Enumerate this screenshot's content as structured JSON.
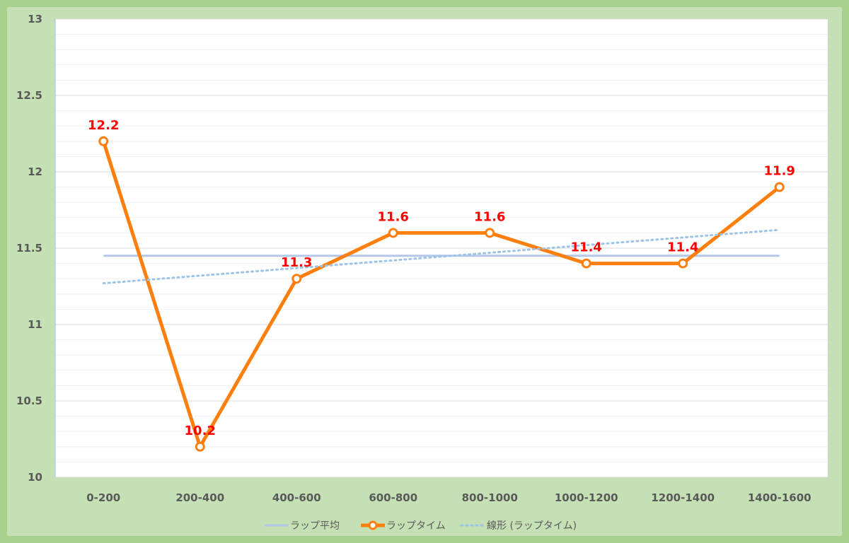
{
  "chart_data": {
    "type": "line",
    "categories": [
      "0-200",
      "200-400",
      "400-600",
      "600-800",
      "800-1000",
      "1000-1200",
      "1200-1400",
      "1400-1600"
    ],
    "series": [
      {
        "name": "ラップ平均",
        "values": [
          11.45,
          11.45,
          11.45,
          11.45,
          11.45,
          11.45,
          11.45,
          11.45
        ],
        "color": "#b4c7e7",
        "style": "solid"
      },
      {
        "name": "ラップタイム",
        "values": [
          12.2,
          10.2,
          11.3,
          11.6,
          11.6,
          11.4,
          11.4,
          11.9
        ],
        "color": "#ff7f0e",
        "style": "solid-markers",
        "data_labels": [
          "12.2",
          "10.2",
          "11.3",
          "11.6",
          "11.6",
          "11.4",
          "11.4",
          "11.9"
        ]
      },
      {
        "name": "線形 (ラップタイム)",
        "values": [
          11.27,
          11.32,
          11.37,
          11.42,
          11.47,
          11.52,
          11.57,
          11.62
        ],
        "color": "#9dc3e6",
        "style": "dotted"
      }
    ],
    "ylim": [
      10,
      13
    ],
    "yticks": [
      "13",
      "12.5",
      "12",
      "11.5",
      "11",
      "10.5",
      "10"
    ],
    "grid": true,
    "legend_position": "bottom",
    "label_color": "#ff0000"
  }
}
